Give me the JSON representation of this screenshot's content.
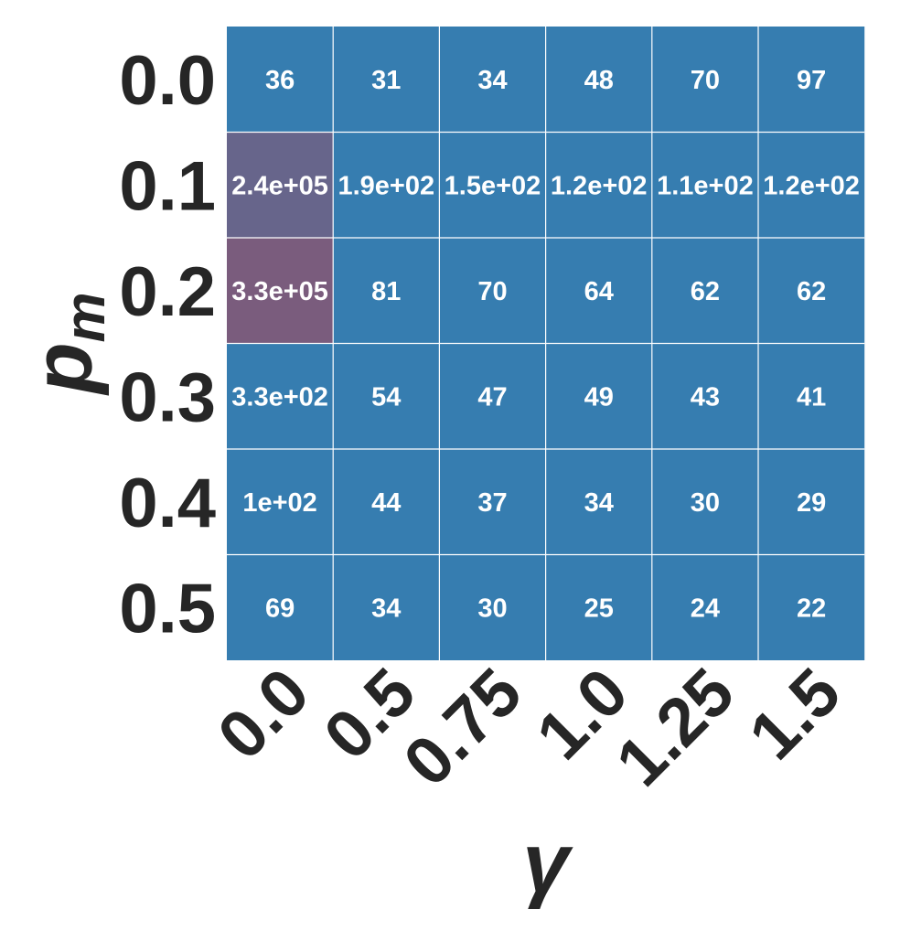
{
  "chart_data": {
    "type": "heatmap",
    "title": "",
    "xlabel": "γ",
    "ylabel_main": "p",
    "ylabel_sub": "m",
    "x_categories": [
      "0.0",
      "0.5",
      "0.75",
      "1.0",
      "1.25",
      "1.5"
    ],
    "y_categories": [
      "0.0",
      "0.1",
      "0.2",
      "0.3",
      "0.4",
      "0.5"
    ],
    "values": [
      [
        36,
        31,
        34,
        48,
        70,
        97
      ],
      [
        240000,
        190,
        150,
        120,
        110,
        120
      ],
      [
        330000,
        81,
        70,
        64,
        62,
        62
      ],
      [
        330,
        54,
        47,
        49,
        43,
        41
      ],
      [
        100,
        44,
        37,
        34,
        30,
        29
      ],
      [
        69,
        34,
        30,
        25,
        24,
        22
      ]
    ],
    "annotations": [
      [
        "36",
        "31",
        "34",
        "48",
        "70",
        "97"
      ],
      [
        "2.4e+05",
        "1.9e+02",
        "1.5e+02",
        "1.2e+02",
        "1.1e+02",
        "1.2e+02"
      ],
      [
        "3.3e+05",
        "81",
        "70",
        "64",
        "62",
        "62"
      ],
      [
        "3.3e+02",
        "54",
        "47",
        "49",
        "43",
        "41"
      ],
      [
        "1e+02",
        "44",
        "37",
        "34",
        "30",
        "29"
      ],
      [
        "69",
        "34",
        "30",
        "25",
        "24",
        "22"
      ]
    ],
    "colormap": {
      "low": "#367db0",
      "high": "#7a5c7d",
      "vmax": 330000
    },
    "gridline_color": "#ffffff",
    "colorbar": false
  }
}
